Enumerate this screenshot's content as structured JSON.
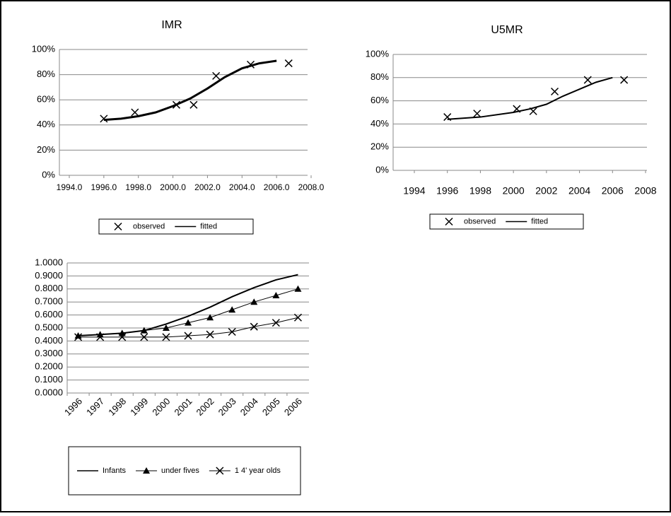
{
  "chart_data": [
    {
      "type": "scatter",
      "title": "IMR",
      "xlim": [
        1994,
        2008
      ],
      "xticks": [
        {
          "value": 1994,
          "label": "1994.0"
        },
        {
          "value": 1996,
          "label": "1996.0"
        },
        {
          "value": 1998,
          "label": "1998.0"
        },
        {
          "value": 2000,
          "label": "2000.0"
        },
        {
          "value": 2002,
          "label": "2002.0"
        },
        {
          "value": 2004,
          "label": "2004.0"
        },
        {
          "value": 2006,
          "label": "2006.0"
        },
        {
          "value": 2008,
          "label": "2008.0"
        }
      ],
      "ylim": [
        0,
        100
      ],
      "yticks": [
        {
          "value": 0,
          "label": "0%"
        },
        {
          "value": 20,
          "label": "20%"
        },
        {
          "value": 40,
          "label": "40%"
        },
        {
          "value": 60,
          "label": "60%"
        },
        {
          "value": 80,
          "label": "80%"
        },
        {
          "value": 100,
          "label": "100%"
        }
      ],
      "grid": true,
      "series": [
        {
          "name": "observed",
          "color": "#000000",
          "mode": "markers",
          "marker": "x",
          "x": [
            1996.0,
            1997.8,
            2000.2,
            2001.2,
            2002.5,
            2004.5,
            2006.7
          ],
          "values": [
            45,
            50,
            56,
            56,
            79,
            88,
            89
          ]
        },
        {
          "name": "fitted",
          "color": "#000000",
          "mode": "lines",
          "width": 3,
          "x": [
            1996,
            1997,
            1998,
            1999,
            2000,
            2001,
            2002,
            2003,
            2004,
            2005,
            2006
          ],
          "values": [
            44,
            45,
            47,
            50,
            55,
            61,
            69,
            78,
            85,
            89,
            91
          ]
        }
      ]
    },
    {
      "type": "scatter",
      "title": "U5MR",
      "xlim": [
        1994,
        2008
      ],
      "xticks": [
        1994,
        1996,
        1998,
        2000,
        2002,
        2004,
        2006,
        2008
      ],
      "ylim": [
        0,
        100
      ],
      "yticks": [
        {
          "value": 0,
          "label": "0%"
        },
        {
          "value": 20,
          "label": "20%"
        },
        {
          "value": 40,
          "label": "40%"
        },
        {
          "value": 60,
          "label": "60%"
        },
        {
          "value": 80,
          "label": "80%"
        },
        {
          "value": 100,
          "label": "100%"
        }
      ],
      "grid": true,
      "series": [
        {
          "name": "observed",
          "color": "#000000",
          "mode": "markers",
          "marker": "x",
          "x": [
            1996.0,
            1997.8,
            2000.2,
            2001.2,
            2002.5,
            2004.5,
            2006.7
          ],
          "values": [
            46,
            49,
            53,
            51,
            68,
            78,
            78
          ]
        },
        {
          "name": "fitted",
          "color": "#000000",
          "mode": "lines",
          "width": 2,
          "x": [
            1996,
            1998,
            2000,
            2001,
            2002,
            2003,
            2004,
            2005,
            2006
          ],
          "values": [
            44,
            46,
            50,
            53,
            57,
            64,
            70,
            76,
            80
          ]
        }
      ]
    },
    {
      "type": "line",
      "categories": [
        "1996",
        "1997",
        "1998",
        "1999",
        "2000",
        "2001",
        "2002",
        "2003",
        "2004",
        "2005",
        "2006"
      ],
      "ylim": [
        0,
        1
      ],
      "yticks": [
        {
          "value": 0,
          "label": "0.0000"
        },
        {
          "value": 0.1,
          "label": "0.1000"
        },
        {
          "value": 0.2,
          "label": "0.2000"
        },
        {
          "value": 0.3,
          "label": "0.3000"
        },
        {
          "value": 0.4,
          "label": "0.4000"
        },
        {
          "value": 0.5,
          "label": "0.5000"
        },
        {
          "value": 0.6,
          "label": "0.6000"
        },
        {
          "value": 0.7,
          "label": "0.7000"
        },
        {
          "value": 0.8,
          "label": "0.8000"
        },
        {
          "value": 0.9,
          "label": "0.9000"
        },
        {
          "value": 1,
          "label": "1.0000"
        }
      ],
      "grid": true,
      "series": [
        {
          "name": "Infants",
          "color": "#000000",
          "marker": "none",
          "width": 2,
          "values": [
            0.44,
            0.45,
            0.46,
            0.48,
            0.53,
            0.59,
            0.66,
            0.74,
            0.81,
            0.87,
            0.91
          ]
        },
        {
          "name": "under fives",
          "color": "#000000",
          "marker": "triangle",
          "width": 1,
          "values": [
            0.44,
            0.45,
            0.46,
            0.48,
            0.5,
            0.54,
            0.58,
            0.64,
            0.7,
            0.75,
            0.8
          ]
        },
        {
          "name": "1 4' year olds",
          "color": "#000000",
          "marker": "x",
          "width": 1,
          "values": [
            0.43,
            0.43,
            0.43,
            0.43,
            0.43,
            0.44,
            0.45,
            0.47,
            0.51,
            0.54,
            0.58
          ]
        }
      ]
    }
  ]
}
